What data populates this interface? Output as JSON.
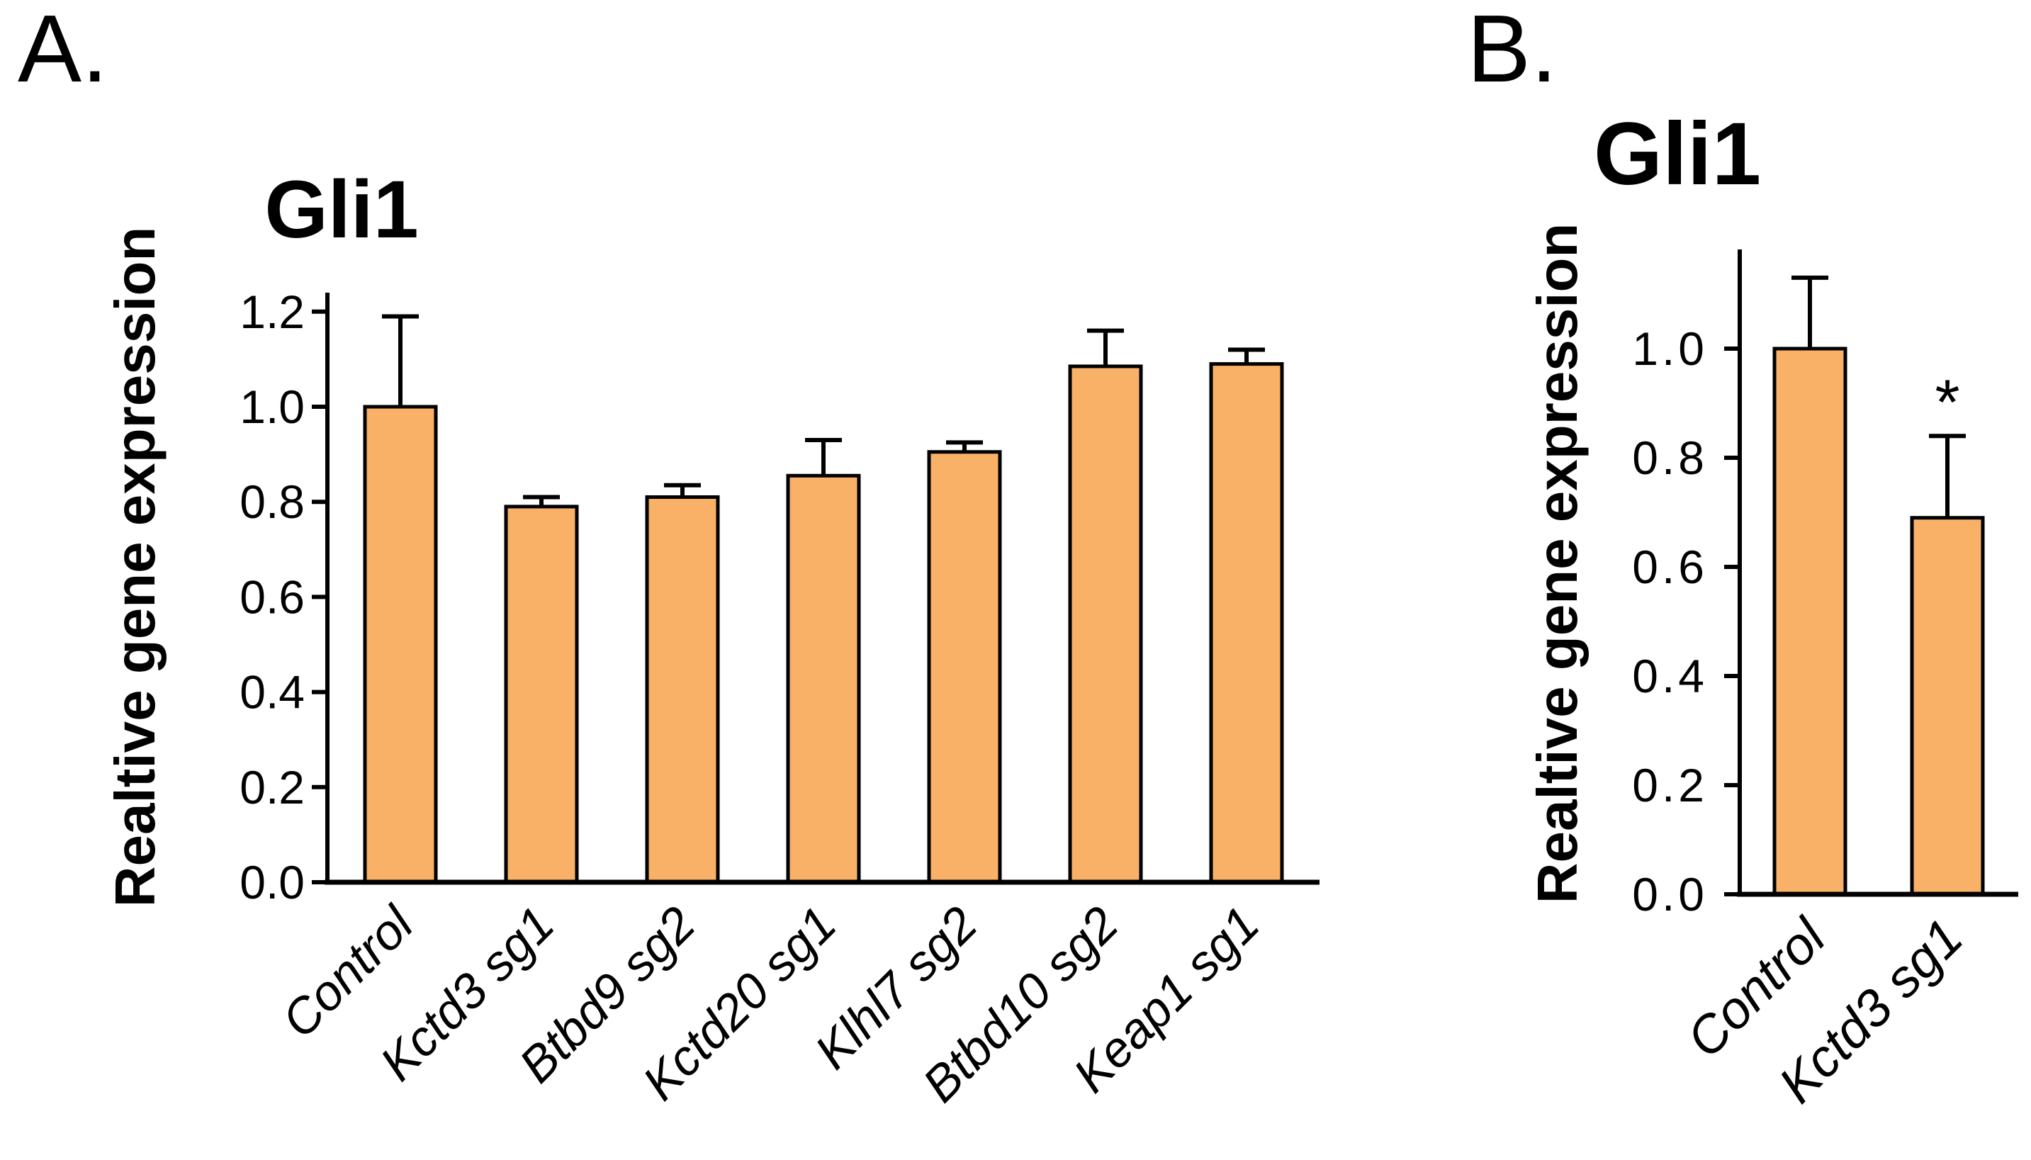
{
  "colors": {
    "bar_fill": "#F9B168",
    "bar_stroke": "#000000",
    "axis": "#000000",
    "text": "#000000",
    "background": "#FFFFFF"
  },
  "chart_data": [
    {
      "type": "bar",
      "panel_label": "A.",
      "title": "Gli1",
      "ylabel": "Realtive gene expression",
      "xlabel": "",
      "ylim": [
        0,
        1.24
      ],
      "grid": false,
      "legend_position": "none",
      "y_tick_labels": [
        "0.0",
        "0.2",
        "0.4",
        "0.6",
        "0.8",
        "1.0",
        "1.2"
      ],
      "categories": [
        "Control",
        "Kctd3 sg1",
        "Btbd9 sg2",
        "Kctd20 sg1",
        "Klhl7 sg2",
        "Btbd10 sg2",
        "Keap1 sg1"
      ],
      "values": [
        1.0,
        0.79,
        0.81,
        0.855,
        0.905,
        1.085,
        1.09
      ],
      "errors_plus": [
        0.19,
        0.02,
        0.025,
        0.075,
        0.02,
        0.075,
        0.03
      ],
      "annotations": []
    },
    {
      "type": "bar",
      "panel_label": "B.",
      "title": "Gli1",
      "ylabel": "Realtive gene expression",
      "xlabel": "",
      "ylim": [
        0,
        1.18
      ],
      "grid": false,
      "legend_position": "none",
      "y_tick_labels": [
        "0.0",
        "0.2",
        "0.4",
        "0.6",
        "0.8",
        "1.0"
      ],
      "categories": [
        "Control",
        "Kctd3 sg1"
      ],
      "values": [
        1.0,
        0.69
      ],
      "errors_plus": [
        0.13,
        0.15
      ],
      "annotations": [
        {
          "text": "*",
          "target_category": "Kctd3 sg1",
          "y": 0.92
        }
      ]
    }
  ]
}
